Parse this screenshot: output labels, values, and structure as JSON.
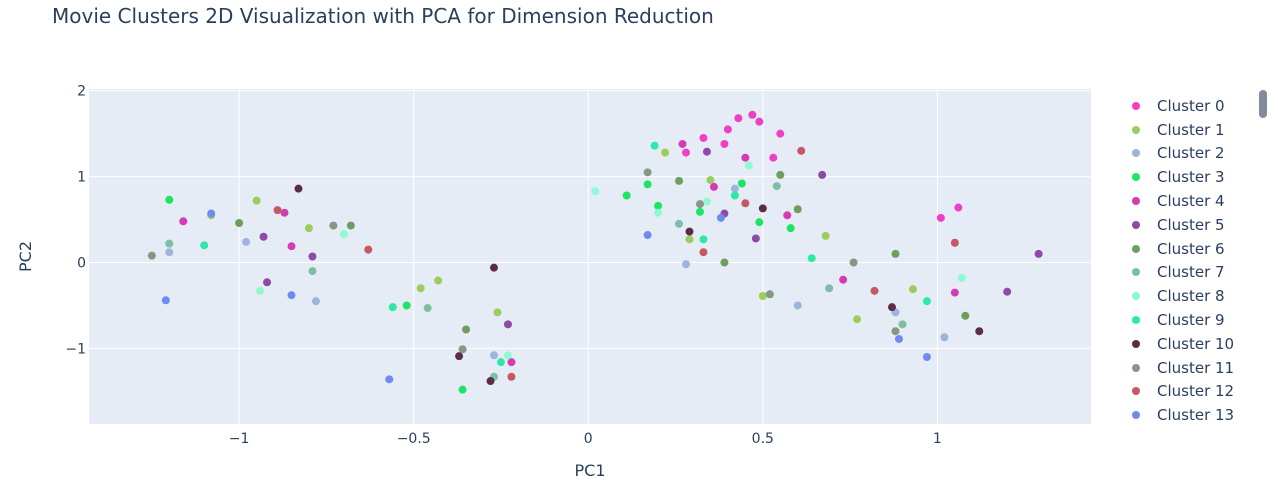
{
  "chart_data": {
    "type": "scatter",
    "title": "Movie Clusters 2D Visualization with PCA for Dimension Reduction",
    "xlabel": "PC1",
    "ylabel": "PC2",
    "xlim": [
      -1.43,
      1.44
    ],
    "ylim": [
      -1.88,
      2.02
    ],
    "x_ticks": [
      -1,
      -0.5,
      0,
      0.5,
      1
    ],
    "x_tick_labels": [
      "−1",
      "−0.5",
      "0",
      "0.5",
      "1"
    ],
    "y_ticks": [
      -1,
      0,
      1,
      2
    ],
    "y_tick_labels": [
      "−1",
      "0",
      "1",
      "2"
    ],
    "grid": true,
    "legend_position": "right",
    "plot_background": "#e5ecf6",
    "grid_color": "#ffffff",
    "series": [
      {
        "name": "Cluster 0",
        "color": "#ef3fc4",
        "points": [
          [
            0.43,
            1.68
          ],
          [
            0.47,
            1.72
          ],
          [
            0.4,
            1.55
          ],
          [
            0.55,
            1.5
          ],
          [
            0.33,
            1.45
          ],
          [
            1.06,
            0.64
          ],
          [
            1.01,
            0.52
          ],
          [
            0.49,
            1.64
          ],
          [
            0.39,
            1.38
          ],
          [
            0.53,
            1.22
          ],
          [
            0.28,
            1.28
          ]
        ]
      },
      {
        "name": "Cluster 1",
        "color": "#9ccc5b",
        "points": [
          [
            -1.08,
            0.55
          ],
          [
            -0.95,
            0.72
          ],
          [
            0.22,
            1.28
          ],
          [
            0.35,
            0.96
          ],
          [
            -0.43,
            -0.21
          ],
          [
            0.93,
            -0.31
          ],
          [
            0.5,
            -0.39
          ],
          [
            -0.26,
            -0.58
          ],
          [
            -0.8,
            0.4
          ],
          [
            0.68,
            0.31
          ],
          [
            0.29,
            0.27
          ],
          [
            -0.48,
            -0.3
          ],
          [
            0.77,
            -0.66
          ]
        ]
      },
      {
        "name": "Cluster 2",
        "color": "#9db5dc",
        "points": [
          [
            -0.98,
            0.24
          ],
          [
            -0.78,
            -0.45
          ],
          [
            -0.27,
            -1.08
          ],
          [
            0.88,
            -0.58
          ],
          [
            0.42,
            0.86
          ],
          [
            0.6,
            -0.5
          ],
          [
            1.02,
            -0.87
          ],
          [
            0.28,
            -0.02
          ],
          [
            -0.56,
            -0.52
          ],
          [
            -1.2,
            0.12
          ]
        ]
      },
      {
        "name": "Cluster 3",
        "color": "#1ee464",
        "points": [
          [
            0.17,
            0.91
          ],
          [
            0.32,
            0.59
          ],
          [
            0.44,
            0.92
          ],
          [
            0.58,
            0.4
          ],
          [
            -0.36,
            -1.48
          ],
          [
            0.11,
            0.78
          ],
          [
            0.49,
            0.47
          ],
          [
            -0.52,
            -0.5
          ],
          [
            -1.2,
            0.73
          ],
          [
            0.2,
            0.66
          ]
        ]
      },
      {
        "name": "Cluster 4",
        "color": "#d33cb5",
        "points": [
          [
            -1.16,
            0.48
          ],
          [
            -0.85,
            0.19
          ],
          [
            0.36,
            0.88
          ],
          [
            0.57,
            0.55
          ],
          [
            1.05,
            -0.35
          ],
          [
            -0.22,
            -1.16
          ],
          [
            0.27,
            1.38
          ],
          [
            0.45,
            1.22
          ],
          [
            0.73,
            -0.2
          ],
          [
            -0.87,
            0.58
          ]
        ]
      },
      {
        "name": "Cluster 5",
        "color": "#8d4aa6",
        "points": [
          [
            -0.93,
            0.3
          ],
          [
            -0.79,
            0.07
          ],
          [
            0.39,
            0.57
          ],
          [
            0.48,
            0.28
          ],
          [
            1.2,
            -0.34
          ],
          [
            -0.23,
            -0.72
          ],
          [
            0.67,
            1.02
          ],
          [
            0.34,
            1.29
          ],
          [
            -0.92,
            -0.23
          ],
          [
            1.29,
            0.1
          ]
        ]
      },
      {
        "name": "Cluster 6",
        "color": "#6e9e5e",
        "points": [
          [
            -0.68,
            0.43
          ],
          [
            0.6,
            0.62
          ],
          [
            0.26,
            0.95
          ],
          [
            1.08,
            -0.62
          ],
          [
            -0.35,
            -0.78
          ],
          [
            0.55,
            1.02
          ],
          [
            0.88,
            0.1
          ],
          [
            -1.0,
            0.46
          ],
          [
            0.39,
            0.0
          ]
        ]
      },
      {
        "name": "Cluster 7",
        "color": "#7dbfa4",
        "points": [
          [
            -1.2,
            0.22
          ],
          [
            -0.79,
            -0.1
          ],
          [
            0.69,
            -0.3
          ],
          [
            0.26,
            0.45
          ],
          [
            -0.27,
            -1.33
          ],
          [
            0.54,
            0.89
          ],
          [
            0.9,
            -0.72
          ],
          [
            -0.46,
            -0.53
          ]
        ]
      },
      {
        "name": "Cluster 8",
        "color": "#8ff9cf",
        "points": [
          [
            -0.94,
            -0.33
          ],
          [
            0.02,
            0.83
          ],
          [
            0.2,
            0.58
          ],
          [
            0.46,
            1.13
          ],
          [
            -0.7,
            0.33
          ],
          [
            1.07,
            -0.18
          ],
          [
            -0.23,
            -1.08
          ],
          [
            0.34,
            0.71
          ]
        ]
      },
      {
        "name": "Cluster 9",
        "color": "#2ee9a6",
        "points": [
          [
            -0.56,
            -0.52
          ],
          [
            0.33,
            0.27
          ],
          [
            -0.25,
            -1.16
          ],
          [
            0.42,
            0.78
          ],
          [
            0.97,
            -0.45
          ],
          [
            -1.1,
            0.2
          ],
          [
            0.19,
            1.36
          ],
          [
            0.64,
            0.05
          ]
        ]
      },
      {
        "name": "Cluster 10",
        "color": "#5c2c47",
        "points": [
          [
            -0.27,
            -0.06
          ],
          [
            -0.28,
            -1.38
          ],
          [
            -0.83,
            0.86
          ],
          [
            0.29,
            0.36
          ],
          [
            0.87,
            -0.52
          ],
          [
            0.5,
            0.63
          ],
          [
            -0.37,
            -1.09
          ],
          [
            1.12,
            -0.8
          ]
        ]
      },
      {
        "name": "Cluster 11",
        "color": "#849884",
        "points": [
          [
            -1.25,
            0.08
          ],
          [
            -0.73,
            0.43
          ],
          [
            0.32,
            0.68
          ],
          [
            0.52,
            -0.37
          ],
          [
            0.88,
            -0.8
          ],
          [
            -0.36,
            -1.01
          ],
          [
            0.17,
            1.05
          ],
          [
            0.76,
            0.0
          ]
        ]
      },
      {
        "name": "Cluster 12",
        "color": "#c65764",
        "points": [
          [
            -0.89,
            0.61
          ],
          [
            -0.63,
            0.15
          ],
          [
            0.45,
            0.69
          ],
          [
            1.05,
            0.23
          ],
          [
            -0.22,
            -1.33
          ],
          [
            0.82,
            -0.33
          ],
          [
            0.33,
            0.12
          ],
          [
            0.61,
            1.3
          ]
        ]
      },
      {
        "name": "Cluster 13",
        "color": "#6f8af0",
        "points": [
          [
            -1.21,
            -0.44
          ],
          [
            -0.85,
            -0.38
          ],
          [
            0.38,
            0.52
          ],
          [
            0.97,
            -1.1
          ],
          [
            0.89,
            -0.89
          ],
          [
            -0.57,
            -1.36
          ],
          [
            -1.08,
            0.57
          ],
          [
            0.17,
            0.32
          ]
        ]
      }
    ]
  }
}
